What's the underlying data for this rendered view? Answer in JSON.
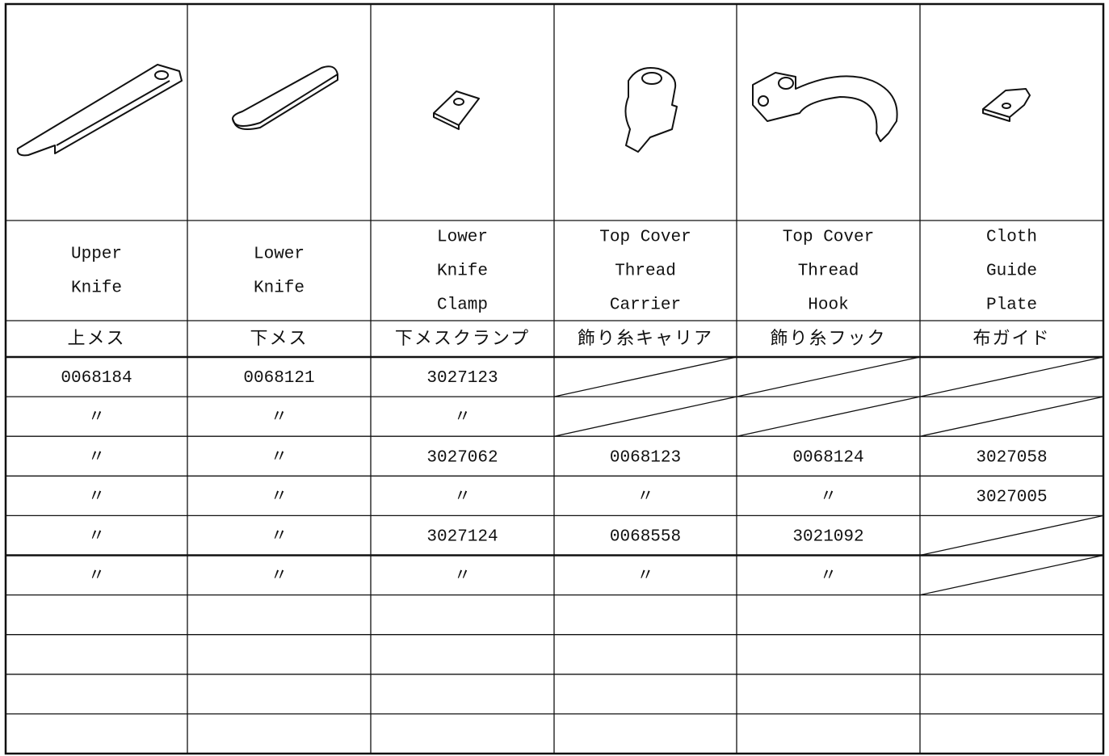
{
  "table": {
    "columns": [
      {
        "english": [
          "Upper",
          "Knife"
        ],
        "japanese": "上メス"
      },
      {
        "english": [
          "Lower",
          "Knife"
        ],
        "japanese": "下メス"
      },
      {
        "english": [
          "Lower",
          "Knife",
          "Clamp"
        ],
        "japanese": "下メスクランプ"
      },
      {
        "english": [
          "Top Cover",
          "Thread",
          "Carrier"
        ],
        "japanese": "飾り糸キャリア"
      },
      {
        "english": [
          "Top Cover",
          "Thread",
          "Hook"
        ],
        "japanese": "飾り糸フック"
      },
      {
        "english": [
          "Cloth",
          "Guide",
          "Plate"
        ],
        "japanese": "布ガイド"
      }
    ],
    "rows": [
      [
        "0068184",
        "0068121",
        "3027123",
        null,
        null,
        null
      ],
      [
        "〃",
        "〃",
        "〃",
        null,
        null,
        null
      ],
      [
        "〃",
        "〃",
        "3027062",
        "0068123",
        "0068124",
        "3027058"
      ],
      [
        "〃",
        "〃",
        "〃",
        "〃",
        "〃",
        "3027005"
      ],
      [
        "〃",
        "〃",
        "3027124",
        "0068558",
        "3021092",
        null
      ],
      [
        "〃",
        "〃",
        "〃",
        "〃",
        "〃",
        null
      ]
    ]
  }
}
